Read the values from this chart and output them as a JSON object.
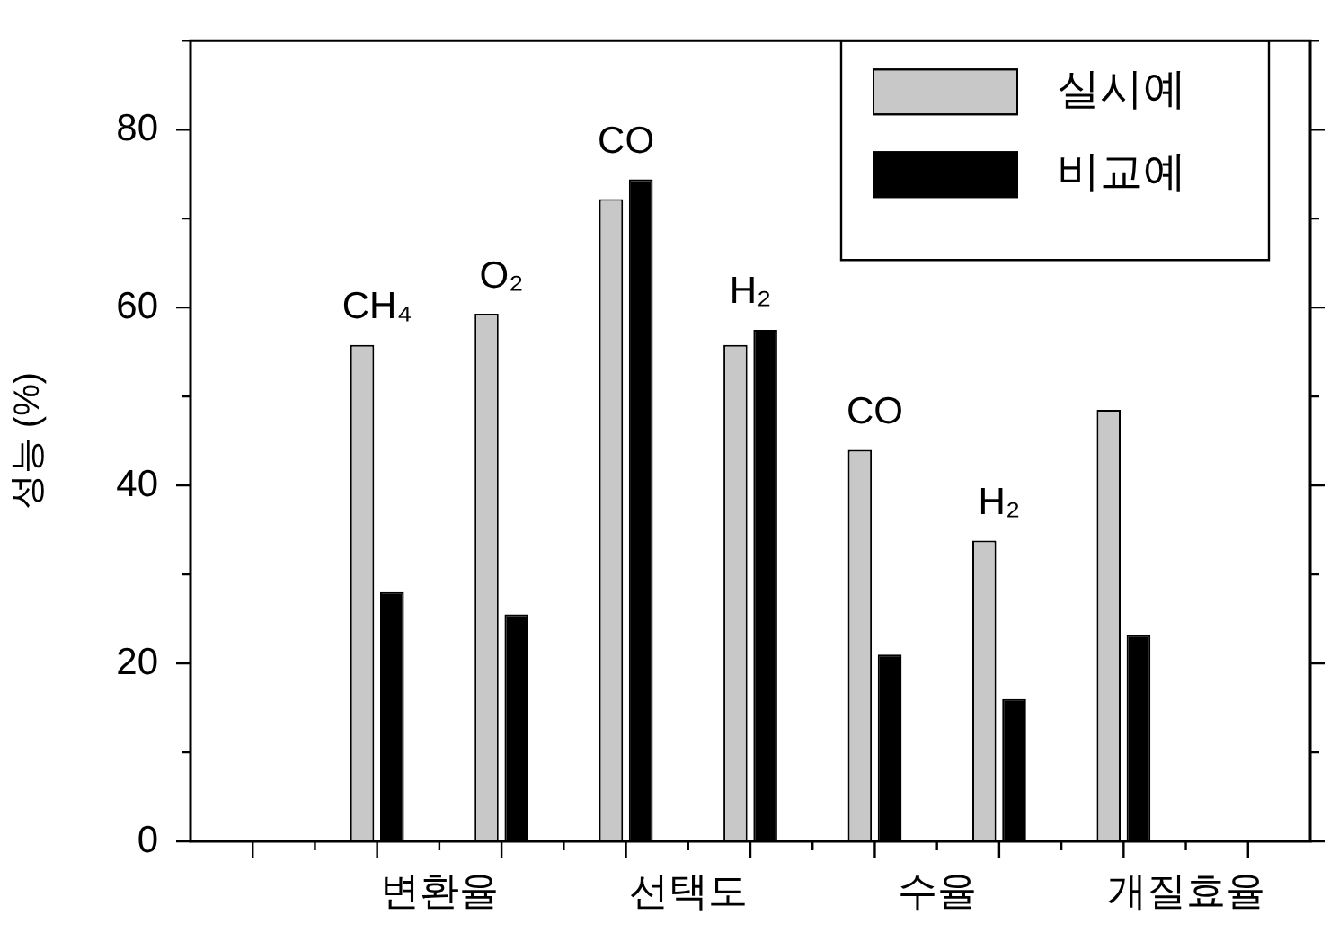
{
  "chart_data": {
    "type": "bar",
    "ylabel": "성능 (%)",
    "categories": [
      "CH₄",
      "O₂",
      "CO",
      "H₂",
      "CO",
      "H₂",
      null
    ],
    "series": [
      {
        "name": "실시예",
        "color": "#c8c8c8",
        "values": [
          55.8,
          59.3,
          72.2,
          55.8,
          44,
          33.8,
          48.5
        ]
      },
      {
        "name": "비교예",
        "color": "#000000",
        "values": [
          28,
          25.5,
          74.4,
          57.5,
          21,
          16,
          23.2
        ]
      }
    ],
    "ylim": [
      0,
      90
    ],
    "yticks": [
      0,
      20,
      40,
      60,
      80
    ],
    "legend": "top right",
    "annotations": [
      "변환율",
      "선택도",
      "수율",
      "개질효율"
    ]
  }
}
